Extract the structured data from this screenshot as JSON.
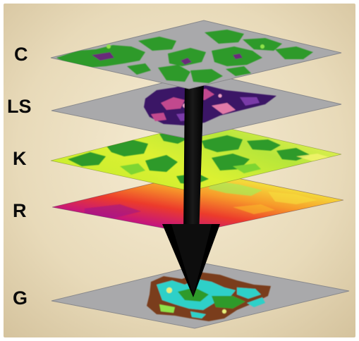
{
  "figure": {
    "type": "layered raster overlay diagram",
    "layers": [
      {
        "label": "C",
        "dominant_colors": [
          "#2f9a2a",
          "#a9a9ab",
          "#6a2a7a"
        ]
      },
      {
        "label": "LS",
        "dominant_colors": [
          "#3a1566",
          "#a9a9ab",
          "#c24a8e"
        ]
      },
      {
        "label": "K",
        "dominant_colors": [
          "#d6f02c",
          "#2f9a2a",
          "#7ed531"
        ]
      },
      {
        "label": "R",
        "dominant_colors": [
          "#b4178d",
          "#e63b2a",
          "#f7a12b",
          "#8ee34a"
        ]
      },
      {
        "label": "G",
        "dominant_colors": [
          "#a9a9ab",
          "#2ed0c8",
          "#7a3d1a",
          "#2f9a2a"
        ]
      }
    ]
  },
  "colors": {
    "background": "#e6d8b8",
    "plate_gray": "#a9a9ab",
    "arrow": "#000000"
  }
}
